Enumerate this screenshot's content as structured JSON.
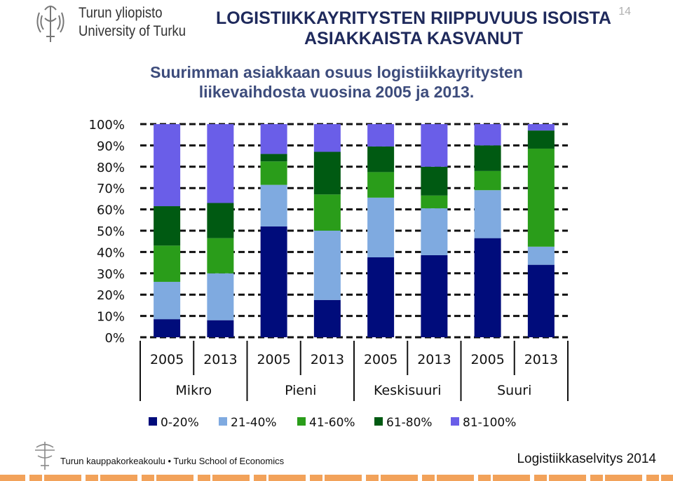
{
  "header": {
    "logo_line1": "Turun yliopisto",
    "logo_line2": "University of Turku",
    "title_line1": "LOGISTIIKKAYRITYSTEN RIIPPUVUUS ISOISTA",
    "title_line2": "ASIAKKAISTA KASVANUT",
    "page_number": "14",
    "subtitle_line1": "Suurimman asiakkaan osuus logistiikkayritysten",
    "subtitle_line2": "liikevaihdosta vuosina 2005 ja 2013."
  },
  "footer": {
    "school": "Turun kauppakorkeakoulu • Turku School of Economics",
    "report": "Logistiikkaselvitys 2014"
  },
  "colors": {
    "title": "#1f2a5c",
    "series": [
      "#000c7b",
      "#7faae0",
      "#2a9d1a",
      "#005a12",
      "#6a5ee8"
    ],
    "footer_bar": [
      "#f2a25a",
      "#ffffff"
    ]
  },
  "chart_data": {
    "type": "bar",
    "stacked": true,
    "groups": [
      "Mikro",
      "Pieni",
      "Keskisuuri",
      "Suuri"
    ],
    "categories": [
      "2005",
      "2013",
      "2005",
      "2013",
      "2005",
      "2013",
      "2005",
      "2013"
    ],
    "yticks": [
      "100%",
      "90%",
      "80%",
      "70%",
      "60%",
      "50%",
      "40%",
      "30%",
      "20%",
      "10%",
      "0%"
    ],
    "ylim": [
      0,
      100
    ],
    "grid": true,
    "legend": "bottom",
    "series": [
      {
        "name": "0-20%",
        "values": [
          8.5,
          8,
          52,
          17.5,
          37.5,
          38.5,
          46.5,
          34
        ]
      },
      {
        "name": "21-40%",
        "values": [
          17.5,
          22,
          19.5,
          32.5,
          28,
          22,
          22.5,
          8.5
        ]
      },
      {
        "name": "41-60%",
        "values": [
          17,
          16.5,
          11,
          17,
          12,
          6,
          9,
          46
        ]
      },
      {
        "name": "61-80%",
        "values": [
          18.5,
          16.5,
          3.5,
          20,
          12,
          13.5,
          12,
          8.5
        ]
      },
      {
        "name": "81-100%",
        "values": [
          38.5,
          37,
          14,
          13,
          10.5,
          20,
          10,
          3
        ]
      }
    ]
  }
}
